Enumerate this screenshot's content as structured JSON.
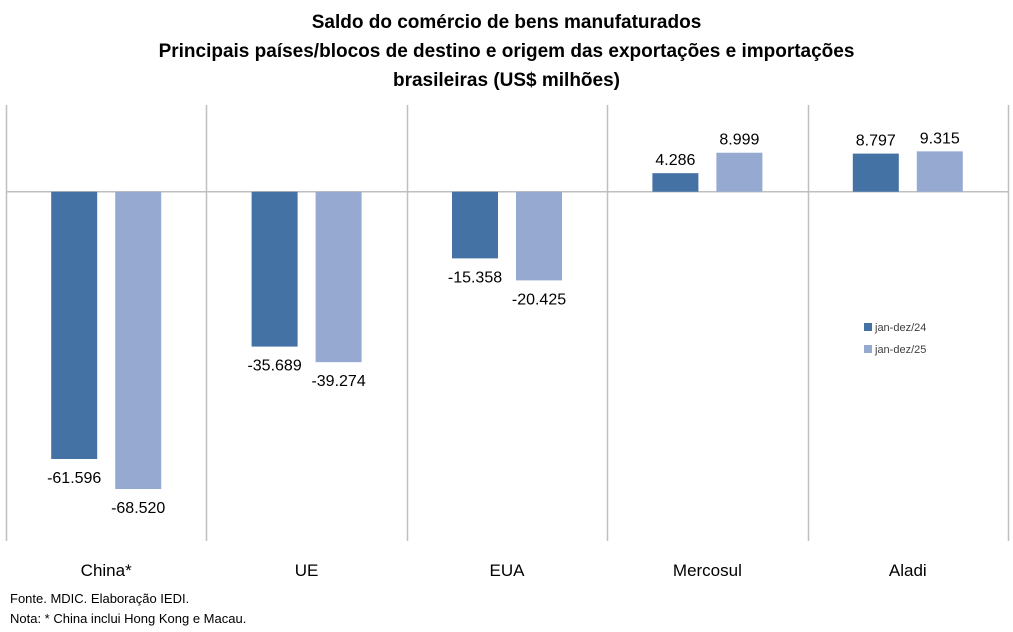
{
  "chart_data": {
    "type": "bar",
    "title": [
      "Saldo do comércio de bens manufaturados",
      "Principais países/blocos de destino e origem das exportações e importações",
      "brasileiras (US$ milhões)"
    ],
    "xlabel": "",
    "ylabel": "",
    "categories": [
      "China*",
      "UE",
      "EUA",
      "Mercosul",
      "Aladi"
    ],
    "series": [
      {
        "name": "jan-dez/24",
        "color": "#4472A4",
        "values": [
          -61596,
          -35689,
          -15358,
          4286,
          8797
        ],
        "labels": [
          "-61.596",
          "-35.689",
          "-15.358",
          "4.286",
          "8.797"
        ]
      },
      {
        "name": "jan-dez/25",
        "color": "#95A9D1",
        "values": [
          -68520,
          -39274,
          -20425,
          8999,
          9315
        ],
        "labels": [
          "-68.520",
          "-39.274",
          "-20.425",
          "8.999",
          "9.315"
        ]
      }
    ],
    "ylim": [
      -80500,
      20000
    ],
    "grid": "vertical category separators",
    "legend": "right"
  },
  "notes": {
    "source": "Fonte. MDIC. Elaboração IEDI.",
    "note": "Nota: * China inclui Hong Kong e Macau."
  }
}
